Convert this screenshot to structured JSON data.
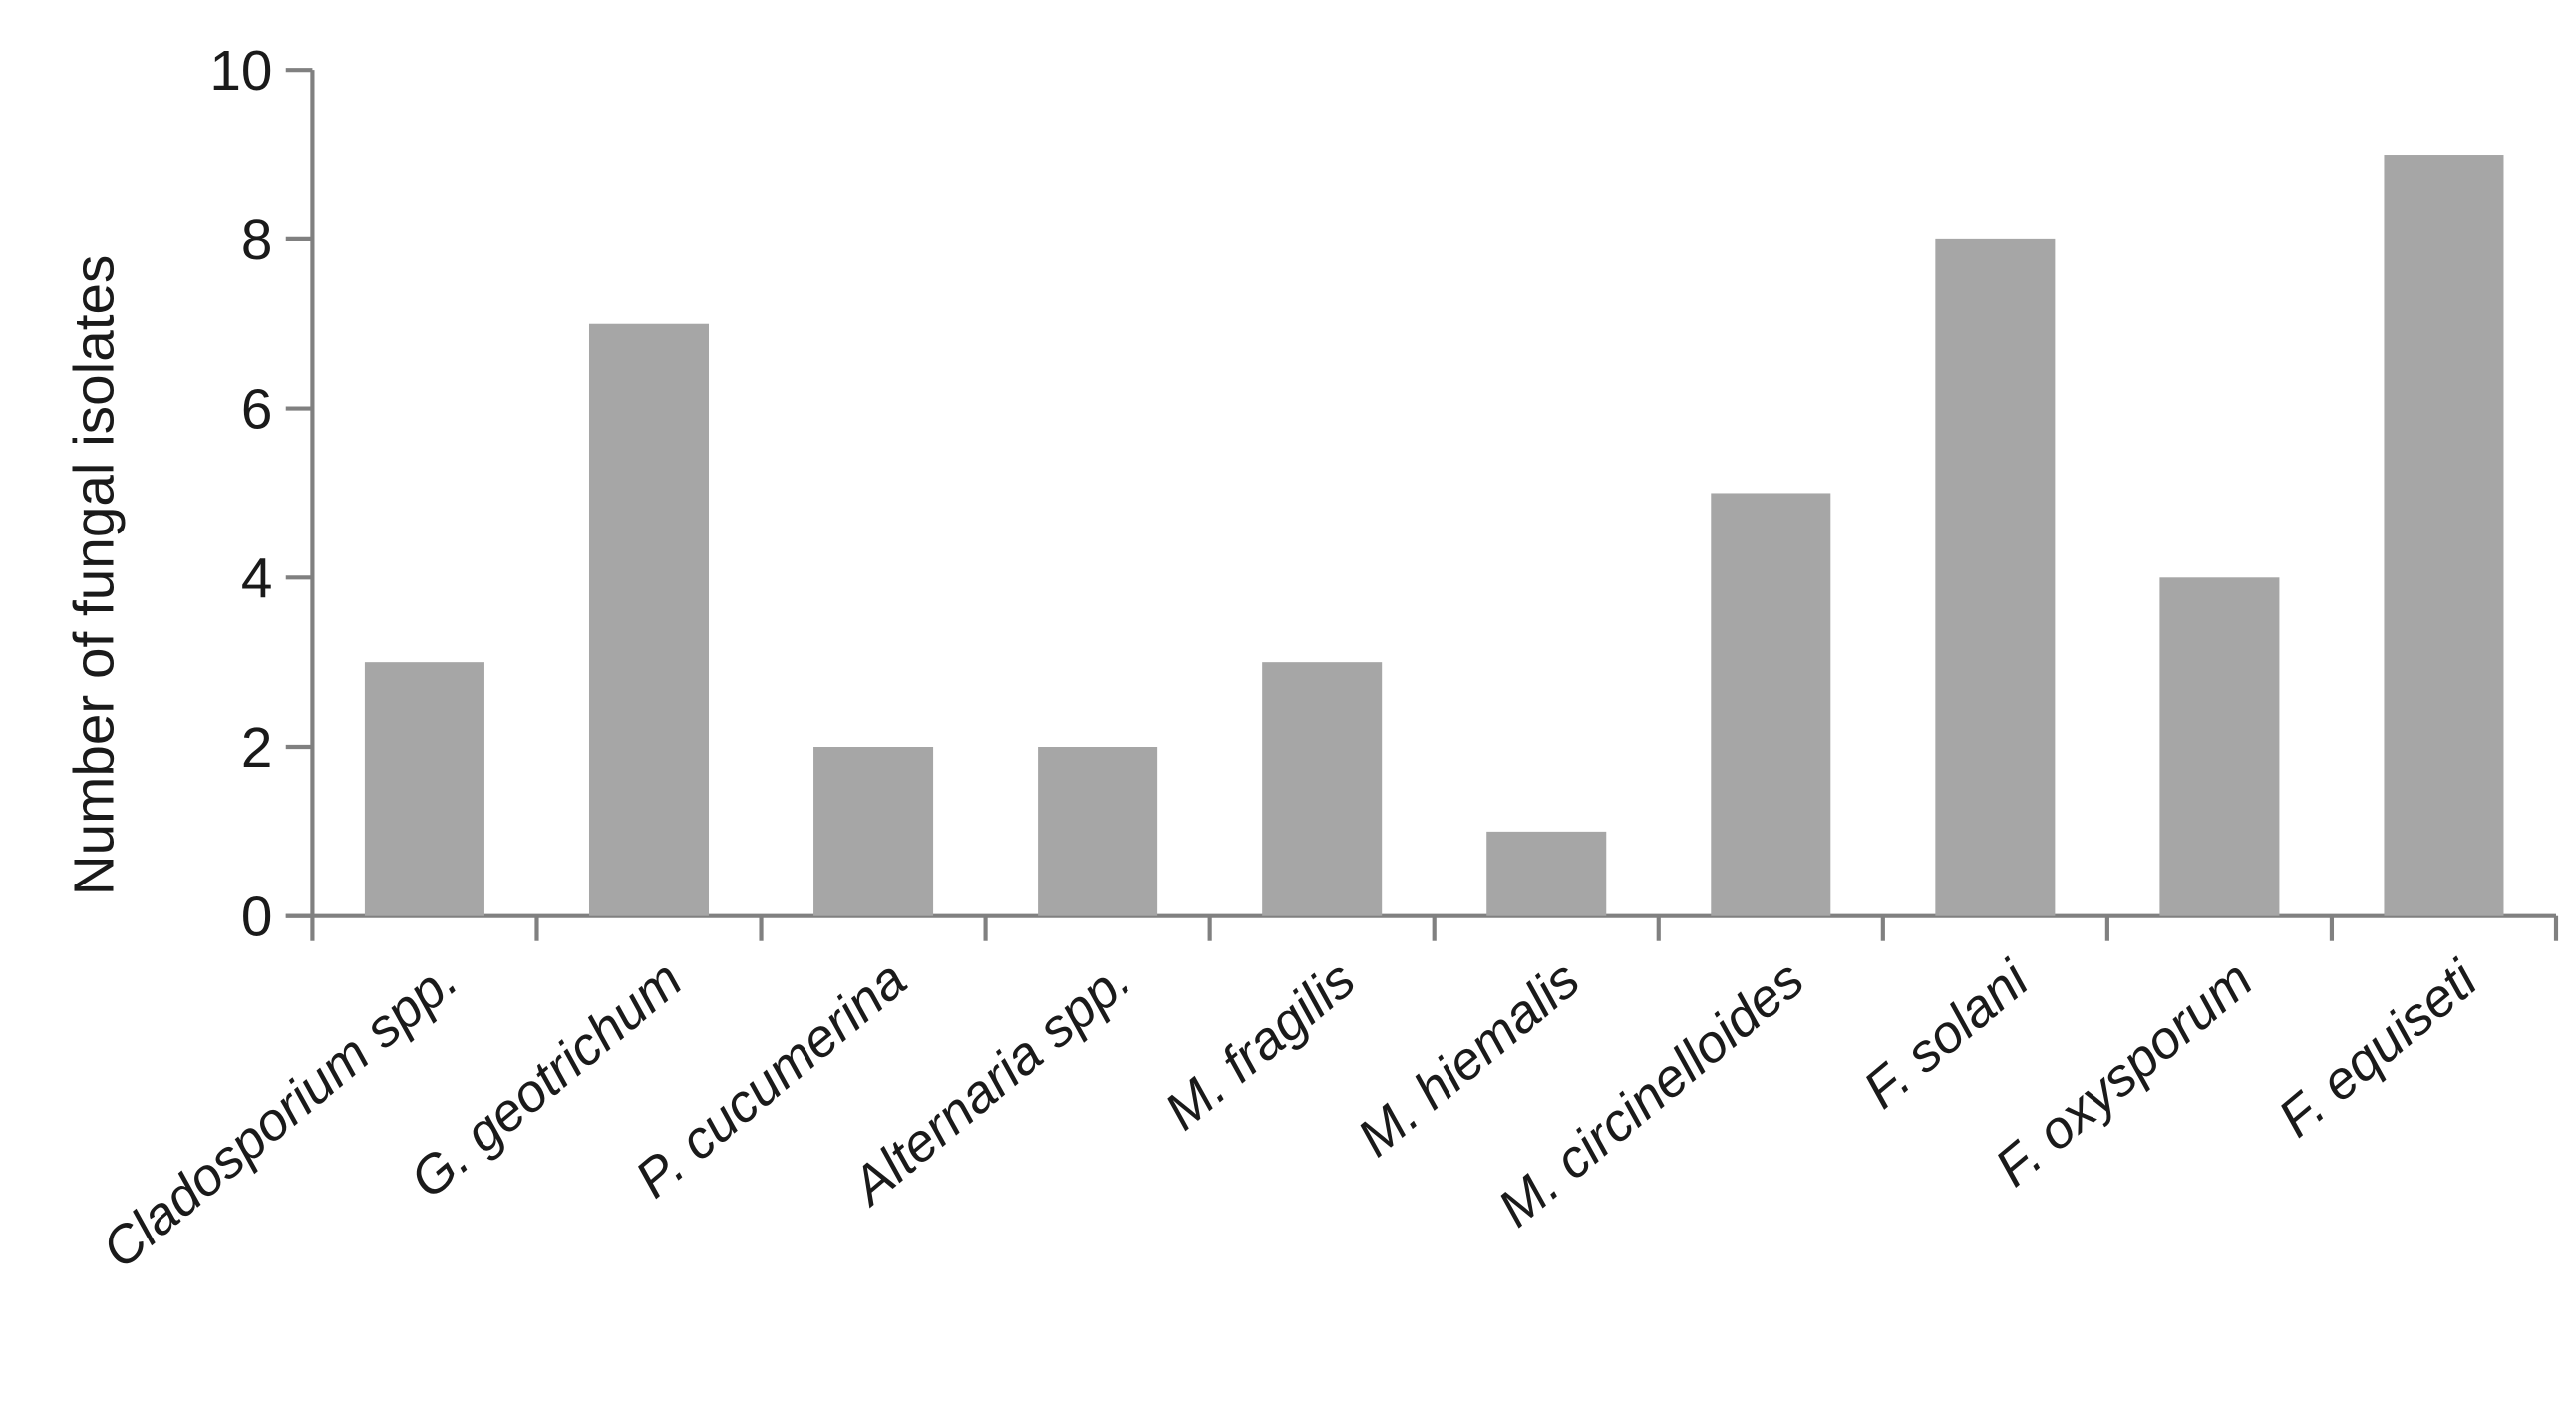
{
  "chart_data": {
    "type": "bar",
    "title": "",
    "xlabel": "",
    "ylabel": "Number of fungal isolates",
    "categories": [
      "Cladosporium spp.",
      "G. geotrichum",
      "P. cucumerina",
      "Alternaria spp.",
      "M. fragilis",
      "M. hiemalis",
      "M. circinelloides",
      "F. solani",
      "F. oxysporum",
      "F. equiseti"
    ],
    "values": [
      3,
      7,
      2,
      2,
      3,
      1,
      5,
      8,
      4,
      9
    ],
    "ylim": [
      0,
      10
    ],
    "yticks": [
      0,
      2,
      4,
      6,
      8,
      10
    ],
    "grid": false,
    "bar_color": "#a6a6a6",
    "axis_color": "#808080"
  }
}
